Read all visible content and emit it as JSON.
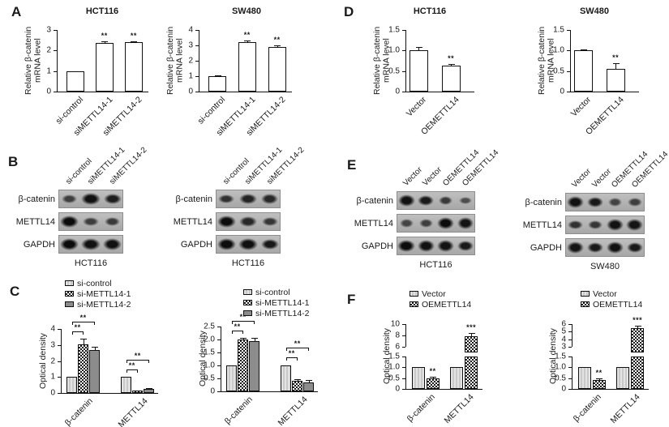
{
  "panels": {
    "a": "A",
    "b": "B",
    "c": "C",
    "d": "D",
    "e": "E",
    "f": "F"
  },
  "colors": {
    "text": "#1a1a1a",
    "bar_white": "#ffffff",
    "bar_light_gray": "#d6d6d6",
    "bar_dark_gray": "#8c8c8c",
    "checker_dark": "#1a1a1a",
    "blot_background": "#b3b3b3",
    "band": "#141414"
  },
  "chart_data": [
    {
      "id": "a1",
      "panel": "A",
      "type": "bar",
      "title": "HCT116",
      "ylabel": "Relative β-catenin mRNA level",
      "ylabel_lines": [
        "Relative β-catenin",
        "mRNA level"
      ],
      "ymax": 3,
      "yticks": [
        "0",
        "1",
        "2",
        "3"
      ],
      "categories": [
        "si-control",
        "siMETTL14-1",
        "siMETTL14-2"
      ],
      "values": [
        1.0,
        2.35,
        2.4
      ],
      "errors": [
        0.03,
        0.08,
        0.05
      ],
      "sig": [
        "",
        "**",
        "**"
      ],
      "bar_pattern": "plain"
    },
    {
      "id": "a2",
      "panel": "A",
      "type": "bar",
      "title": "SW480",
      "ylabel": "Relative β-catenin mRNA level",
      "ylabel_lines": [
        "Relative β-catenin",
        "mRNA level"
      ],
      "ymax": 4,
      "yticks": [
        "0",
        "1",
        "2",
        "3",
        "4"
      ],
      "categories": [
        "si-control",
        "siMETTL14-1",
        "siMETTL14-2"
      ],
      "values": [
        1.0,
        3.2,
        2.9
      ],
      "errors": [
        0.05,
        0.12,
        0.12
      ],
      "sig": [
        "",
        "**",
        "**"
      ],
      "bar_pattern": "plain"
    },
    {
      "id": "d1",
      "panel": "D",
      "type": "bar",
      "title": "HCT116",
      "ylabel": "Relative β-catenin mRNA level",
      "ylabel_lines": [
        "Relative β-catenin",
        "mRNA level"
      ],
      "ymax": 1.5,
      "yticks": [
        "0",
        "0.5",
        "1.0",
        "1.5"
      ],
      "categories": [
        "Vector",
        "OEMETTL14"
      ],
      "values": [
        1.0,
        0.63
      ],
      "errors": [
        0.08,
        0.05
      ],
      "sig": [
        "",
        "**"
      ],
      "bar_pattern": "plain"
    },
    {
      "id": "d2",
      "panel": "D",
      "type": "bar",
      "title": "SW480",
      "ylabel": "Relative β-catenin mRNA level",
      "ylabel_lines": [
        "Relative β-catenin",
        "mRNA level"
      ],
      "ymax": 1.5,
      "yticks": [
        "0",
        "0.5",
        "1.0",
        "1.5"
      ],
      "categories": [
        "Vector",
        "OEMETTL14"
      ],
      "values": [
        1.0,
        0.56
      ],
      "errors": [
        0.03,
        0.13
      ],
      "sig": [
        "",
        "**"
      ],
      "bar_pattern": "plain"
    },
    {
      "id": "c1",
      "panel": "C",
      "type": "grouped_bar",
      "ylabel": "Optical density",
      "ymax": 4,
      "yticks": [
        "0",
        "1",
        "2",
        "3",
        "4"
      ],
      "categories": [
        "β-catenin",
        "METTL14"
      ],
      "series": [
        {
          "name": "si-control",
          "pattern": "light",
          "values": [
            1.0,
            1.0
          ],
          "errors": [
            0.02,
            0.02
          ]
        },
        {
          "name": "si-METTL14-1",
          "pattern": "checker",
          "values": [
            3.05,
            0.15
          ],
          "errors": [
            0.35,
            0.04
          ]
        },
        {
          "name": "si-METTL14-2",
          "pattern": "gray",
          "values": [
            2.7,
            0.25
          ],
          "errors": [
            0.18,
            0.05
          ]
        }
      ],
      "brackets": [
        {
          "group": 0,
          "from": 0,
          "to": 1,
          "label": "**"
        },
        {
          "group": 0,
          "from": 0,
          "to": 2,
          "label": "**"
        },
        {
          "group": 1,
          "from": 0,
          "to": 1,
          "label": "**"
        },
        {
          "group": 1,
          "from": 0,
          "to": 2,
          "label": "**"
        }
      ]
    },
    {
      "id": "c2",
      "panel": "C",
      "type": "grouped_bar",
      "ylabel": "Optical density",
      "ymax": 2.5,
      "yticks": [
        "0",
        "0.5",
        "1.0",
        "1.5",
        "2.0",
        "2.5"
      ],
      "categories": [
        "β-catenin",
        "METTL14"
      ],
      "series": [
        {
          "name": "si-control",
          "pattern": "light",
          "values": [
            1.0,
            1.0
          ],
          "errors": [
            0.02,
            0.02
          ]
        },
        {
          "name": "si-METTL14-1",
          "pattern": "checker",
          "values": [
            2.0,
            0.42
          ],
          "errors": [
            0.07,
            0.05
          ]
        },
        {
          "name": "si-METTL14-2",
          "pattern": "gray",
          "values": [
            1.95,
            0.33
          ],
          "errors": [
            0.12,
            0.1
          ]
        }
      ],
      "brackets": [
        {
          "group": 0,
          "from": 0,
          "to": 1,
          "label": "**"
        },
        {
          "group": 0,
          "from": 0,
          "to": 2,
          "label": "**"
        },
        {
          "group": 1,
          "from": 0,
          "to": 1,
          "label": "**"
        },
        {
          "group": 1,
          "from": 0,
          "to": 2,
          "label": "**"
        }
      ]
    },
    {
      "id": "f1",
      "panel": "F",
      "type": "broken_bar",
      "ylabel": "Optical density",
      "categories": [
        "β-catenin",
        "METTL14"
      ],
      "lower_max": 1.5,
      "lower_ticks": [
        "0",
        "0.5",
        "1.0",
        "1.5"
      ],
      "upper_min": 6,
      "upper_max": 10,
      "upper_ticks": [
        "6",
        "8",
        "10"
      ],
      "series": [
        {
          "name": "Vector",
          "pattern": "light",
          "values": [
            1.0,
            1.0
          ],
          "errors": [
            0,
            0
          ],
          "sig": [
            "",
            ""
          ]
        },
        {
          "name": "OEMETTL14",
          "pattern": "checker",
          "values": [
            0.5,
            7.9
          ],
          "errors": [
            0.07,
            0.6
          ],
          "sig": [
            "**",
            "***"
          ]
        }
      ]
    },
    {
      "id": "f2",
      "panel": "F",
      "type": "broken_bar",
      "ylabel": "Optical density",
      "categories": [
        "β-catenin",
        "METTL14"
      ],
      "lower_max": 1.5,
      "lower_ticks": [
        "0",
        "0.5",
        "1.0",
        "1.5"
      ],
      "upper_min": 3,
      "upper_max": 6,
      "upper_ticks": [
        "3",
        "4",
        "5",
        "6"
      ],
      "series": [
        {
          "name": "Vector",
          "pattern": "light",
          "values": [
            1.0,
            1.0
          ],
          "errors": [
            0,
            0
          ],
          "sig": [
            "",
            ""
          ]
        },
        {
          "name": "OEMETTL14",
          "pattern": "checker",
          "values": [
            0.42,
            5.5
          ],
          "errors": [
            0.06,
            0.25
          ],
          "sig": [
            "**",
            "***"
          ]
        }
      ]
    }
  ],
  "legends": {
    "c": [
      {
        "label": "si-control",
        "pattern": "light"
      },
      {
        "label": "si-METTL14-1",
        "pattern": "checker"
      },
      {
        "label": "si-METTL14-2",
        "pattern": "gray"
      }
    ],
    "f": [
      {
        "label": "Vector",
        "pattern": "light"
      },
      {
        "label": "OEMETTL14",
        "pattern": "checker"
      }
    ]
  },
  "blots": [
    {
      "id": "b1",
      "panel": "B",
      "cell_line": "HCT116",
      "lanes": [
        "si-control",
        "siMETTL14-1",
        "siMETTL14-2"
      ],
      "rows": [
        {
          "label": "β-catenin",
          "bands": [
            0.45,
            0.95,
            0.8
          ]
        },
        {
          "label": "METTL14",
          "bands": [
            1.0,
            0.45,
            0.5
          ]
        },
        {
          "label": "GAPDH",
          "bands": [
            1.0,
            0.95,
            0.95
          ]
        }
      ]
    },
    {
      "id": "b2",
      "panel": "B",
      "cell_line": "HCT116",
      "lanes": [
        "si-control",
        "siMETTL14-1",
        "siMETTL14-2"
      ],
      "rows": [
        {
          "label": "β-catenin",
          "bands": [
            0.6,
            0.75,
            0.7
          ]
        },
        {
          "label": "METTL14",
          "bands": [
            1.0,
            0.7,
            0.55
          ]
        },
        {
          "label": "GAPDH",
          "bands": [
            1.0,
            0.95,
            0.85
          ]
        }
      ]
    },
    {
      "id": "e1",
      "panel": "E",
      "cell_line": "HCT116",
      "lanes": [
        "Vector",
        "Vector",
        "OEMETTL14",
        "OEMETTL14"
      ],
      "rows": [
        {
          "label": "β-catenin",
          "bands": [
            0.95,
            0.85,
            0.5,
            0.3
          ]
        },
        {
          "label": "METTL14",
          "bands": [
            0.4,
            0.45,
            1.0,
            0.9
          ]
        },
        {
          "label": "GAPDH",
          "bands": [
            1.0,
            0.95,
            0.9,
            0.85
          ]
        }
      ]
    },
    {
      "id": "e2",
      "panel": "E",
      "cell_line": "SW480",
      "lanes": [
        "Vector",
        "Vector",
        "OEMETTL14",
        "OEMETTL14"
      ],
      "rows": [
        {
          "label": "β-catenin",
          "bands": [
            0.95,
            0.85,
            0.4,
            0.45
          ]
        },
        {
          "label": "METTL14",
          "bands": [
            0.6,
            0.55,
            0.95,
            0.9
          ]
        },
        {
          "label": "GAPDH",
          "bands": [
            0.9,
            0.85,
            0.95,
            0.85
          ]
        }
      ]
    }
  ]
}
